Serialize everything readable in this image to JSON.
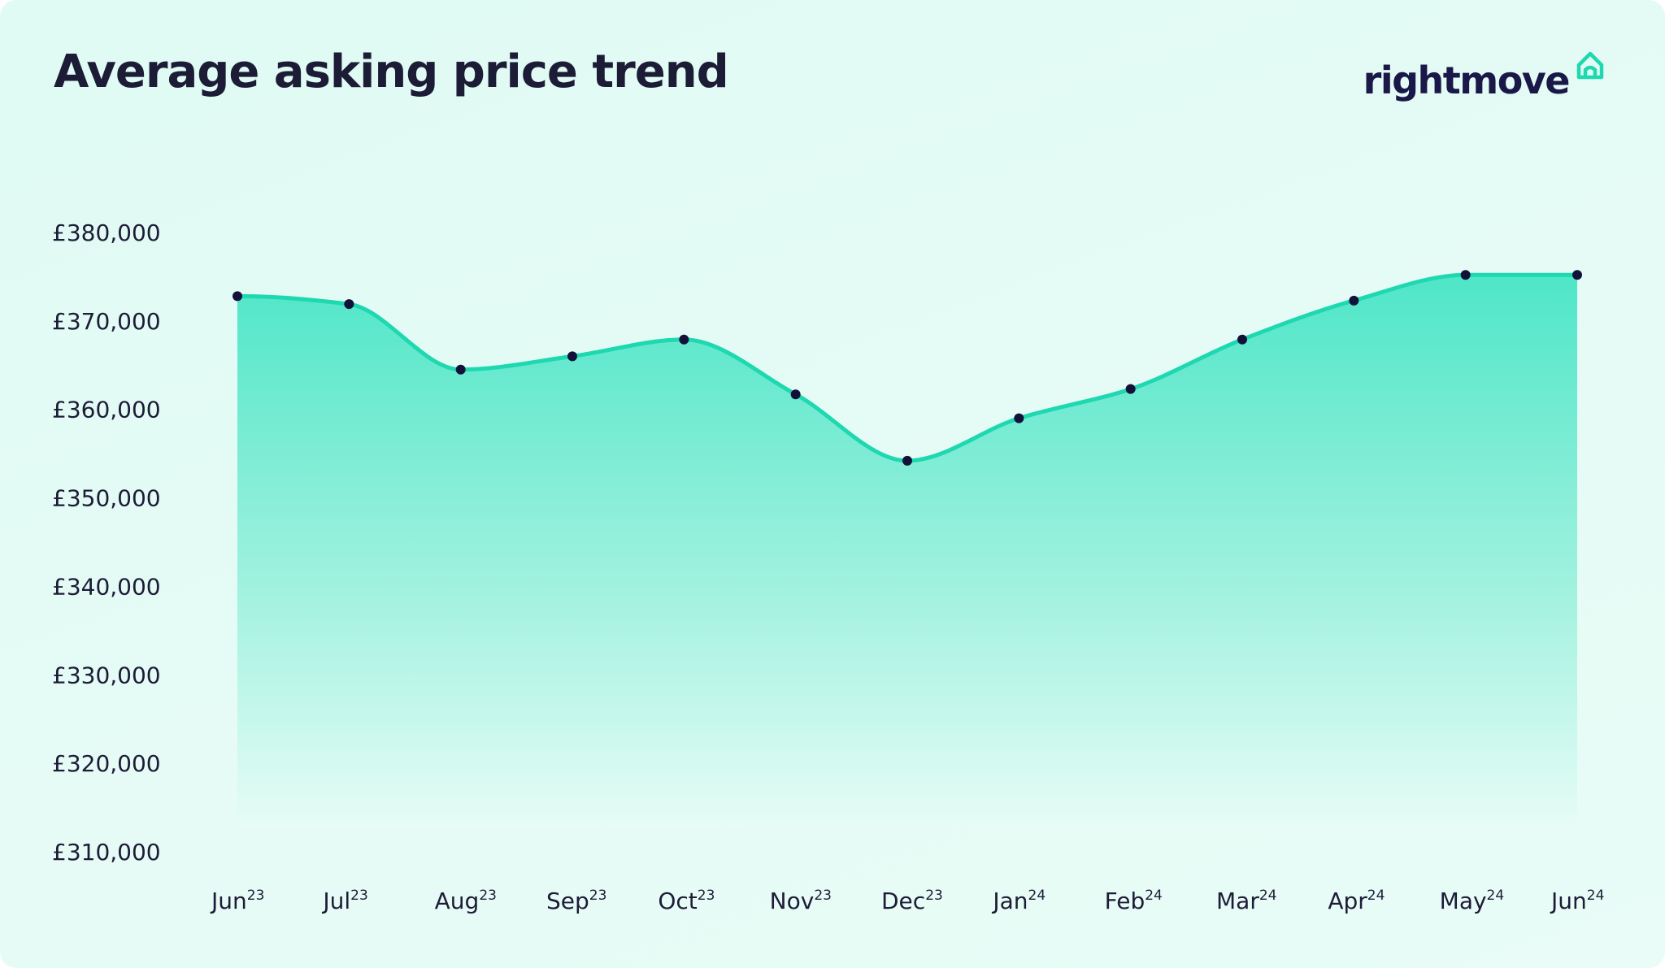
{
  "header": {
    "title": "Average asking price trend",
    "brand_name": "rightmove",
    "brand_icon": "house-outline-icon"
  },
  "colors": {
    "background": "#e3fbf4",
    "line": "#1ed8b0",
    "area_top": "#4fe6c8",
    "area_bottom": "#e6fcf6",
    "marker": "#12113a",
    "text": "#1d1c37",
    "brand": "#1a1848",
    "brand_accent": "#1ed8b0"
  },
  "chart_data": {
    "type": "area",
    "title": "Average asking price trend",
    "xlabel": "",
    "ylabel": "",
    "categories": [
      {
        "month": "Jun",
        "year": "23"
      },
      {
        "month": "Jul",
        "year": "23"
      },
      {
        "month": "Aug",
        "year": "23"
      },
      {
        "month": "Sep",
        "year": "23"
      },
      {
        "month": "Oct",
        "year": "23"
      },
      {
        "month": "Nov",
        "year": "23"
      },
      {
        "month": "Dec",
        "year": "23"
      },
      {
        "month": "Jan",
        "year": "24"
      },
      {
        "month": "Feb",
        "year": "24"
      },
      {
        "month": "Mar",
        "year": "24"
      },
      {
        "month": "Apr",
        "year": "24"
      },
      {
        "month": "May",
        "year": "24"
      },
      {
        "month": "Jun",
        "year": "24"
      }
    ],
    "series": [
      {
        "values": [
          372800,
          371900,
          364500,
          366000,
          367900,
          361700,
          354200,
          359000,
          362300,
          367900,
          372300,
          375200,
          375200
        ]
      }
    ],
    "ylim": [
      310000,
      380000
    ],
    "yticks": [
      380000,
      370000,
      360000,
      350000,
      340000,
      330000,
      320000,
      310000
    ],
    "ytick_labels": [
      "£380,000",
      "£370,000",
      "£360,000",
      "£350,000",
      "£340,000",
      "£330,000",
      "£320,000",
      "£310,000"
    ],
    "grid": false,
    "legend": "none",
    "smooth": true,
    "markers": true
  }
}
